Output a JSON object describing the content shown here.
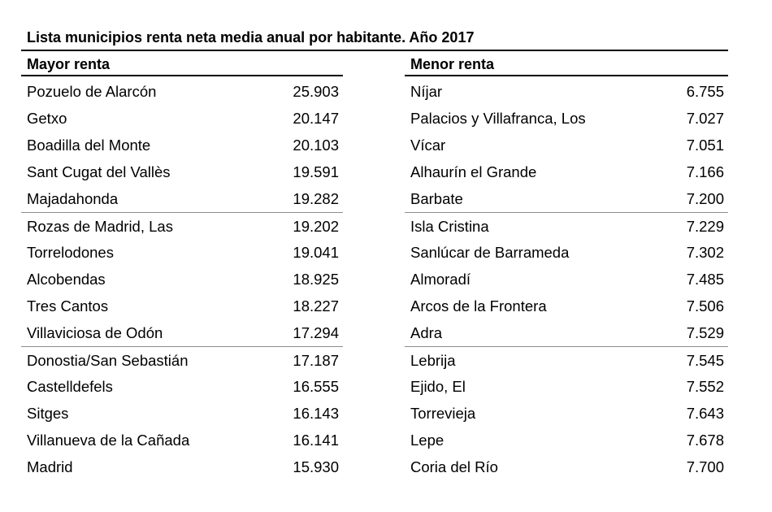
{
  "title": "Lista municipios renta neta media anual por habitante. Año 2017",
  "left": {
    "header": "Mayor renta",
    "rows": [
      {
        "name": "Pozuelo de Alarcón",
        "value": "25.903"
      },
      {
        "name": "Getxo",
        "value": "20.147"
      },
      {
        "name": "Boadilla del Monte",
        "value": "20.103"
      },
      {
        "name": "Sant Cugat del Vallès",
        "value": "19.591"
      },
      {
        "name": "Majadahonda",
        "value": "19.282"
      },
      {
        "name": "Rozas de Madrid, Las",
        "value": "19.202"
      },
      {
        "name": "Torrelodones",
        "value": "19.041"
      },
      {
        "name": "Alcobendas",
        "value": "18.925"
      },
      {
        "name": "Tres Cantos",
        "value": "18.227"
      },
      {
        "name": "Villaviciosa de Odón",
        "value": "17.294"
      },
      {
        "name": "Donostia/San Sebastián",
        "value": "17.187"
      },
      {
        "name": "Castelldefels",
        "value": "16.555"
      },
      {
        "name": "Sitges",
        "value": "16.143"
      },
      {
        "name": "Villanueva de la Cañada",
        "value": "16.141"
      },
      {
        "name": "Madrid",
        "value": "15.930"
      }
    ]
  },
  "right": {
    "header": "Menor renta",
    "rows": [
      {
        "name": "Níjar",
        "value": "6.755"
      },
      {
        "name": "Palacios y Villafranca, Los",
        "value": "7.027"
      },
      {
        "name": "Vícar",
        "value": "7.051"
      },
      {
        "name": "Alhaurín el Grande",
        "value": "7.166"
      },
      {
        "name": "Barbate",
        "value": "7.200"
      },
      {
        "name": "Isla Cristina",
        "value": "7.229"
      },
      {
        "name": "Sanlúcar de Barrameda",
        "value": "7.302"
      },
      {
        "name": "Almoradí",
        "value": "7.485"
      },
      {
        "name": "Arcos de la Frontera",
        "value": "7.506"
      },
      {
        "name": "Adra",
        "value": "7.529"
      },
      {
        "name": "Lebrija",
        "value": "7.545"
      },
      {
        "name": "Ejido, El",
        "value": "7.552"
      },
      {
        "name": "Torrevieja",
        "value": "7.643"
      },
      {
        "name": "Lepe",
        "value": "7.678"
      },
      {
        "name": "Coria del Río",
        "value": "7.700"
      }
    ]
  }
}
